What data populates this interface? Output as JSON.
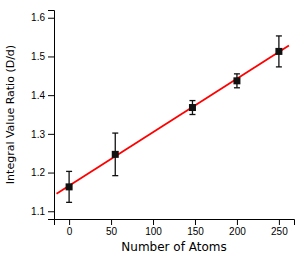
{
  "chart_data": {
    "type": "scatter",
    "xlabel": "Number of Atoms",
    "ylabel": "Integral Value Ratio (D/d)",
    "xlim": [
      -18,
      268
    ],
    "ylim": [
      1.08,
      1.62
    ],
    "xticks": [
      0,
      50,
      100,
      150,
      200,
      250
    ],
    "yticks": [
      1.1,
      1.2,
      1.3,
      1.4,
      1.5,
      1.6
    ],
    "series": [
      {
        "type": "line",
        "color": "#ff0000",
        "line_style": "solid",
        "x": [
          -15,
          262
        ],
        "values": [
          1.145,
          1.528
        ]
      },
      {
        "type": "scatter",
        "color": "#111111",
        "marker": "square",
        "x": [
          0,
          55,
          147,
          200,
          250
        ],
        "values": [
          1.163,
          1.247,
          1.368,
          1.437,
          1.513
        ],
        "errors": [
          0.04,
          0.055,
          0.018,
          0.018,
          0.04
        ]
      }
    ]
  }
}
